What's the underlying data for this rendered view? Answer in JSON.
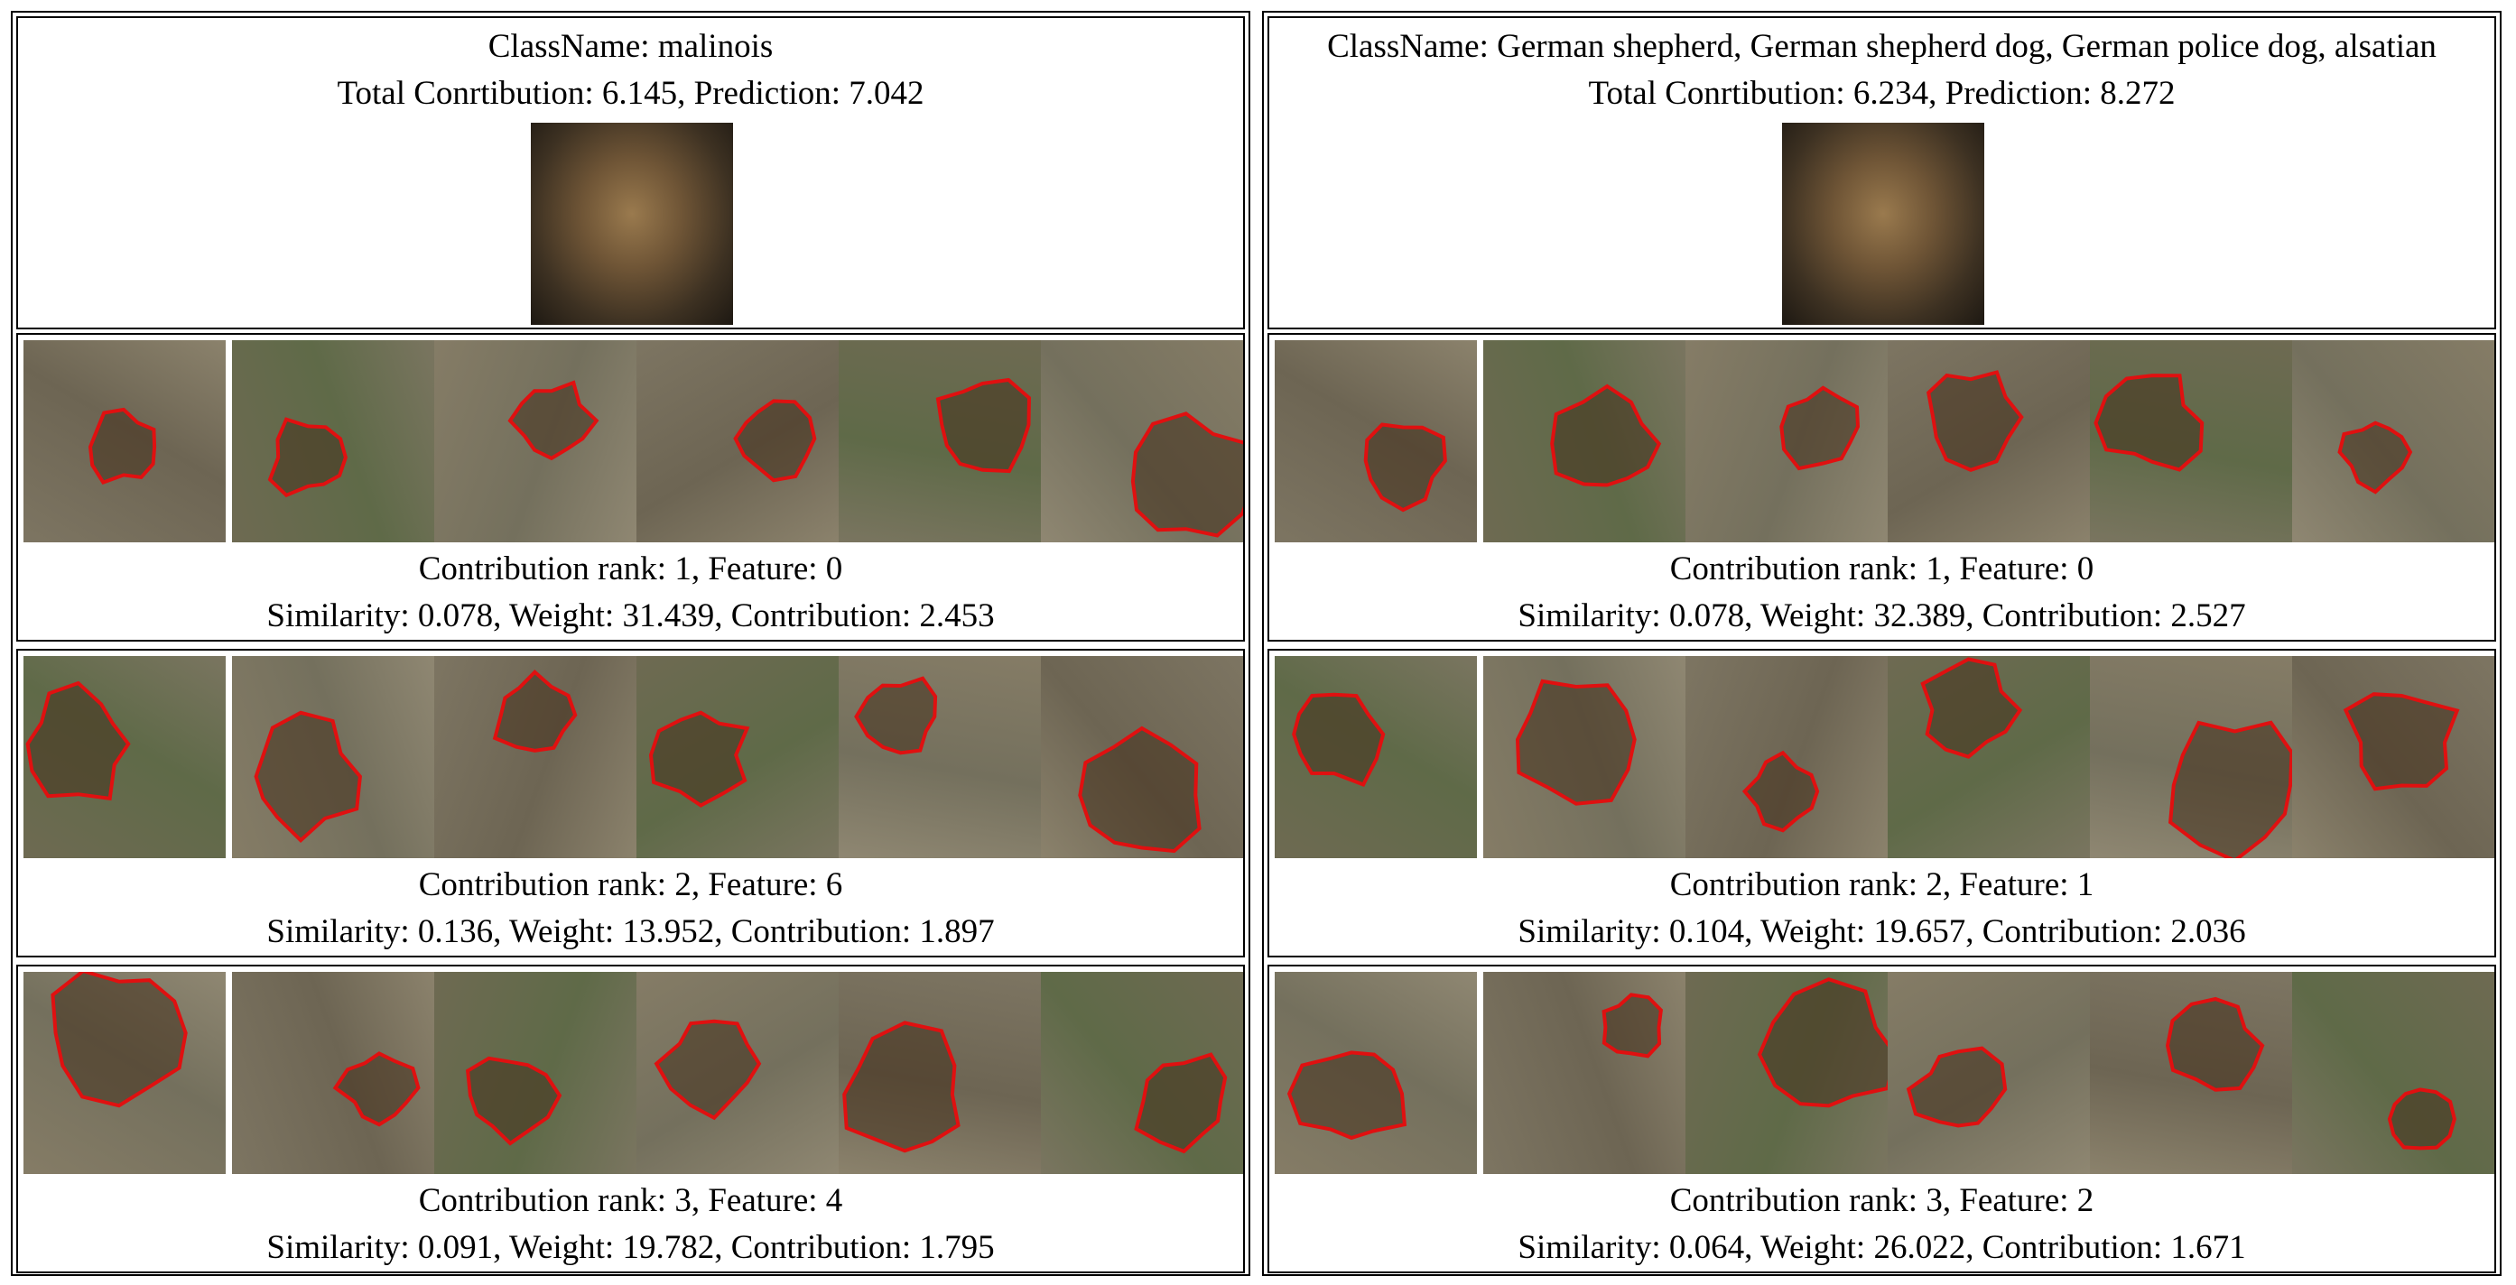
{
  "columns": [
    {
      "class_name": "ClassName: malinois",
      "totals": "Total Conrtibution: 6.145, Prediction: 7.042",
      "query_image_icon": "dog-photo-icon",
      "rows": [
        {
          "rank_line": "Contribution rank: 1, Feature: 0",
          "stats_line": "Similarity: 0.078, Weight: 31.439, Contribution: 2.453"
        },
        {
          "rank_line": "Contribution rank: 2, Feature: 6",
          "stats_line": "Similarity: 0.136, Weight: 13.952, Contribution: 1.897"
        },
        {
          "rank_line": "Contribution rank: 3, Feature: 4",
          "stats_line": "Similarity: 0.091, Weight: 19.782, Contribution: 1.795"
        }
      ]
    },
    {
      "class_name": "ClassName: German shepherd, German shepherd dog, German police dog, alsatian",
      "totals": "Total Conrtibution: 6.234, Prediction: 8.272",
      "query_image_icon": "dog-photo-icon",
      "rows": [
        {
          "rank_line": "Contribution rank: 1, Feature: 0",
          "stats_line": "Similarity: 0.078, Weight: 32.389, Contribution: 2.527"
        },
        {
          "rank_line": "Contribution rank: 2, Feature: 1",
          "stats_line": "Similarity: 0.104, Weight: 19.657, Contribution: 2.036"
        },
        {
          "rank_line": "Contribution rank: 3, Feature: 2",
          "stats_line": "Similarity: 0.064, Weight: 26.022, Contribution: 1.671"
        }
      ]
    }
  ],
  "colors": {
    "highlight_outline": "#e01010",
    "border": "#000000",
    "dimmed_overlay": "#8a8370"
  }
}
